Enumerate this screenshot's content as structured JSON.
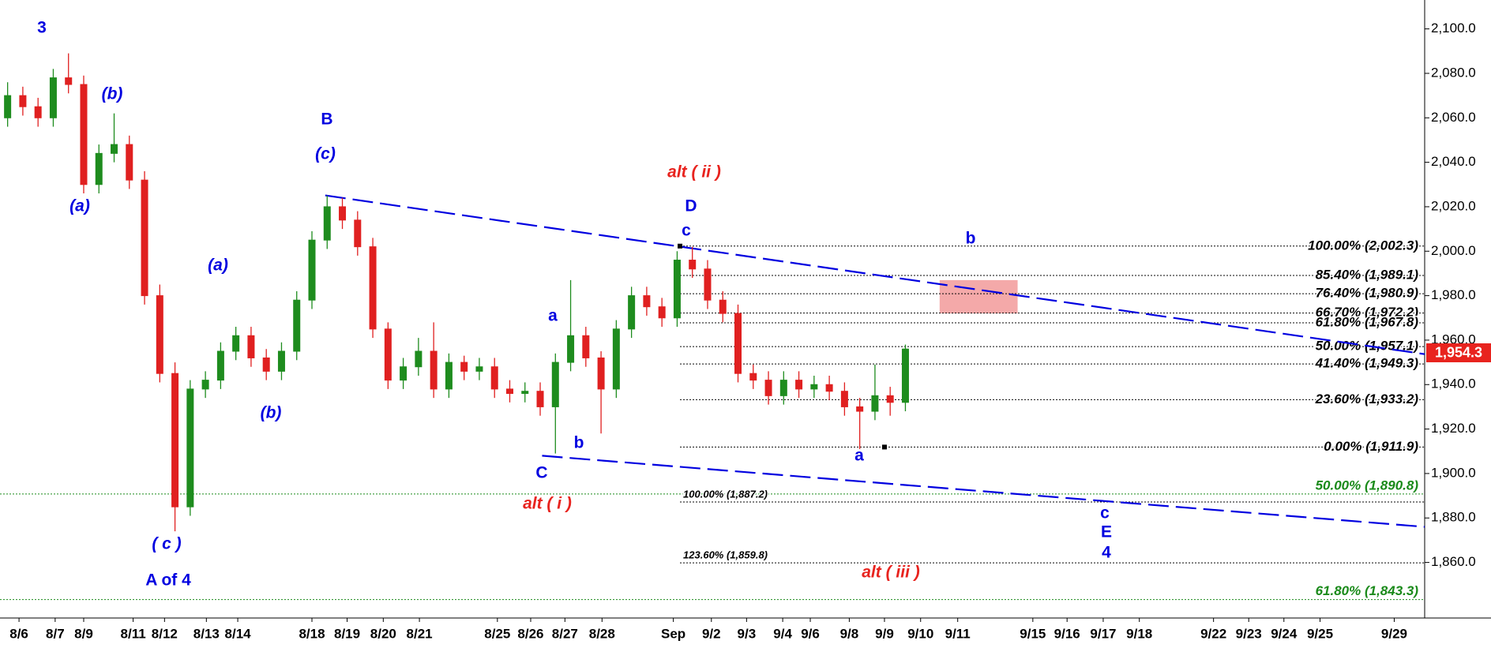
{
  "chart_data": {
    "type": "candlestick",
    "xlim": [
      0,
      149.8
    ],
    "ylim": [
      1835,
      2113
    ],
    "xticks": [
      {
        "value": 2.0,
        "label": "8/6"
      },
      {
        "value": 5.8,
        "label": "8/7"
      },
      {
        "value": 8.8,
        "label": "8/9"
      },
      {
        "value": 14.0,
        "label": "8/11"
      },
      {
        "value": 17.3,
        "label": "8/12"
      },
      {
        "value": 21.7,
        "label": "8/13"
      },
      {
        "value": 25.0,
        "label": "8/14"
      },
      {
        "value": 32.8,
        "label": "8/18"
      },
      {
        "value": 36.5,
        "label": "8/19"
      },
      {
        "value": 40.3,
        "label": "8/20"
      },
      {
        "value": 44.1,
        "label": "8/21"
      },
      {
        "value": 52.3,
        "label": "8/25"
      },
      {
        "value": 55.8,
        "label": "8/26"
      },
      {
        "value": 59.4,
        "label": "8/27"
      },
      {
        "value": 63.3,
        "label": "8/28"
      },
      {
        "value": 70.8,
        "label": "Sep"
      },
      {
        "value": 74.8,
        "label": "9/2"
      },
      {
        "value": 78.5,
        "label": "9/3"
      },
      {
        "value": 82.3,
        "label": "9/4"
      },
      {
        "value": 85.2,
        "label": "9/6"
      },
      {
        "value": 89.3,
        "label": "9/8"
      },
      {
        "value": 93.0,
        "label": "9/9"
      },
      {
        "value": 96.8,
        "label": "9/10"
      },
      {
        "value": 100.7,
        "label": "9/11"
      },
      {
        "value": 108.6,
        "label": "9/15"
      },
      {
        "value": 112.2,
        "label": "9/16"
      },
      {
        "value": 116.0,
        "label": "9/17"
      },
      {
        "value": 119.8,
        "label": "9/18"
      },
      {
        "value": 127.6,
        "label": "9/22"
      },
      {
        "value": 131.3,
        "label": "9/23"
      },
      {
        "value": 135.0,
        "label": "9/24"
      },
      {
        "value": 138.8,
        "label": "9/25"
      },
      {
        "value": 146.6,
        "label": "9/29"
      }
    ],
    "yticks": [
      {
        "value": 1860,
        "label": "1,860.0"
      },
      {
        "value": 1880,
        "label": "1,880.0"
      },
      {
        "value": 1900,
        "label": "1,900.0"
      },
      {
        "value": 1920,
        "label": "1,920.0"
      },
      {
        "value": 1940,
        "label": "1,940.0"
      },
      {
        "value": 1960,
        "label": "1,960.0"
      },
      {
        "value": 1980,
        "label": "1,980.0"
      },
      {
        "value": 2000,
        "label": "2,000.0"
      },
      {
        "value": 2020,
        "label": "2,020.0"
      },
      {
        "value": 2040,
        "label": "2,040.0"
      },
      {
        "value": 2060,
        "label": "2,060.0"
      },
      {
        "value": 2080,
        "label": "2,080.0"
      },
      {
        "value": 2100,
        "label": "2,100.0"
      }
    ],
    "up_color": "#1e8c1e",
    "down_color": "#e02020",
    "x": [
      0.8,
      2.4,
      4,
      5.6,
      7.2,
      8.8,
      10.4,
      12,
      13.6,
      15.2,
      16.8,
      18.4,
      20,
      21.6,
      23.2,
      24.8,
      26.4,
      28,
      29.6,
      31.2,
      32.8,
      34.4,
      36,
      37.6,
      39.2,
      40.8,
      42.4,
      44,
      45.6,
      47.2,
      48.8,
      50.4,
      52,
      53.6,
      55.2,
      56.8,
      58.4,
      60,
      61.6,
      63.2,
      64.8,
      66.4,
      68,
      69.6,
      71.2,
      72.8,
      74.4,
      76,
      77.6,
      79.2,
      80.8,
      82.4,
      84,
      85.6,
      87.2,
      88.8,
      90.4,
      92,
      93.6,
      95.2
    ],
    "open": [
      2060,
      2070,
      2065,
      2060,
      2078,
      2075,
      2030,
      2044,
      2048,
      2032,
      1980,
      1945,
      1885,
      1938,
      1942,
      1955,
      1962,
      1952,
      1946,
      1955,
      1978,
      2005,
      2020,
      2014,
      2002,
      1965,
      1942,
      1948,
      1955,
      1938,
      1950,
      1946,
      1948,
      1938,
      1936,
      1937,
      1930,
      1950,
      1962,
      1952,
      1938,
      1965,
      1980,
      1975,
      1970,
      1996,
      1992,
      1978,
      1972,
      1945,
      1942,
      1935,
      1942,
      1938,
      1940,
      1937,
      1930,
      1928,
      1935,
      1932
    ],
    "high": [
      2076,
      2074,
      2069,
      2082,
      2089,
      2079,
      2048,
      2062,
      2052,
      2036,
      1985,
      1950,
      1942,
      1946,
      1959,
      1966,
      1966,
      1956,
      1959,
      1982,
      2009,
      2025,
      2024,
      2018,
      2006,
      1968,
      1952,
      1961,
      1968,
      1954,
      1953,
      1952,
      1952,
      1942,
      1941,
      1941,
      1954,
      1987,
      1966,
      1955,
      1969,
      1984,
      1984,
      1979,
      2000,
      2002,
      1996,
      1982,
      1976,
      1949,
      1946,
      1946,
      1946,
      1944,
      1944,
      1941,
      1934,
      1949,
      1939,
      1958
    ],
    "low": [
      2056,
      2061,
      2056,
      2056,
      2071,
      2026,
      2026,
      2040,
      2028,
      1976,
      1941,
      1874,
      1881,
      1934,
      1938,
      1951,
      1948,
      1942,
      1942,
      1951,
      1974,
      2001,
      2010,
      1998,
      1961,
      1938,
      1938,
      1944,
      1934,
      1934,
      1942,
      1942,
      1934,
      1932,
      1932,
      1926,
      1909,
      1946,
      1948,
      1918,
      1934,
      1961,
      1971,
      1966,
      1966,
      1988,
      1974,
      1968,
      1941,
      1938,
      1931,
      1931,
      1934,
      1934,
      1933,
      1926,
      1911,
      1924,
      1926,
      1928
    ],
    "close": [
      2070,
      2065,
      2060,
      2078,
      2075,
      2030,
      2044,
      2048,
      2032,
      1980,
      1945,
      1885,
      1938,
      1942,
      1955,
      1962,
      1952,
      1946,
      1955,
      1978,
      2005,
      2020,
      2014,
      2002,
      1965,
      1942,
      1948,
      1955,
      1938,
      1950,
      1946,
      1948,
      1938,
      1936,
      1937,
      1930,
      1950,
      1962,
      1952,
      1938,
      1965,
      1980,
      1975,
      1970,
      1996,
      1992,
      1978,
      1972,
      1945,
      1942,
      1935,
      1942,
      1938,
      1940,
      1937,
      1930,
      1928,
      1935,
      1932,
      1956
    ],
    "last": {
      "value": 1954.3,
      "label": "1,954.3",
      "color": "#e8231e"
    },
    "retracement": {
      "color": "#000000",
      "levels": [
        {
          "value": 2002.3,
          "label": "100.00% (2,002.3)"
        },
        {
          "value": 1989.1,
          "label": "85.40% (1,989.1)"
        },
        {
          "value": 1980.9,
          "label": "76.40% (1,980.9)"
        },
        {
          "value": 1972.2,
          "label": "66.70% (1,972.2)"
        },
        {
          "value": 1967.8,
          "label": "61.80% (1,967.8)"
        },
        {
          "value": 1957.1,
          "label": "50.00% (1,957.1)"
        },
        {
          "value": 1949.3,
          "label": "41.40% (1,949.3)"
        },
        {
          "value": 1933.2,
          "label": "23.60% (1,933.2)"
        },
        {
          "value": 1911.9,
          "label": "0.00% (1,911.9)"
        }
      ]
    },
    "targets": {
      "color": "#1a8a1a",
      "levels": [
        {
          "value": 1890.8,
          "label": "50.00% (1,890.8)"
        },
        {
          "value": 1843.3,
          "label": "61.80% (1,843.3)"
        }
      ]
    },
    "extensions": {
      "color": "#000000",
      "levels": [
        {
          "value": 1887.2,
          "label": "100.00% (1,887.2)"
        },
        {
          "value": 1859.8,
          "label": "123.60% (1,859.8)"
        }
      ]
    },
    "trendlines": [
      {
        "color": "#0000e0",
        "x": [
          34.2,
          149.8
        ],
        "y": [
          2025.1,
          1953.7
        ]
      },
      {
        "color": "#0000e0",
        "x": [
          57.0,
          149.8
        ],
        "y": [
          1908,
          1876
        ]
      }
    ],
    "zone": {
      "color": "#f29a9a",
      "x": [
        98.8,
        107.0
      ],
      "y": [
        1972,
        1987
      ]
    },
    "annotations": [
      {
        "text": "3",
        "color": "#0000e0"
      },
      {
        "text": "(b)",
        "color": "#0000e0"
      },
      {
        "text": "(a)",
        "color": "#0000e0"
      },
      {
        "text": "B",
        "color": "#0000e0"
      },
      {
        "text": "(c)",
        "color": "#0000e0"
      },
      {
        "text": "(a)",
        "color": "#0000e0"
      },
      {
        "text": "(b)",
        "color": "#0000e0"
      },
      {
        "text": "( c )",
        "color": "#0000e0"
      },
      {
        "text": "A of 4",
        "color": "#0000e0"
      },
      {
        "text": "alt ( ii )",
        "color": "#e8231e"
      },
      {
        "text": "D",
        "color": "#0000e0"
      },
      {
        "text": "c",
        "color": "#0000e0"
      },
      {
        "text": "a",
        "color": "#0000e0"
      },
      {
        "text": "b",
        "color": "#0000e0"
      },
      {
        "text": "C",
        "color": "#0000e0"
      },
      {
        "text": "alt ( i )",
        "color": "#e8231e"
      },
      {
        "text": "a",
        "color": "#0000e0"
      },
      {
        "text": "b",
        "color": "#0000e0"
      },
      {
        "text": "c",
        "color": "#0000e0"
      },
      {
        "text": "E",
        "color": "#0000e0"
      },
      {
        "text": "4",
        "color": "#0000e0"
      },
      {
        "text": "alt ( iii )",
        "color": "#e8231e"
      }
    ]
  }
}
